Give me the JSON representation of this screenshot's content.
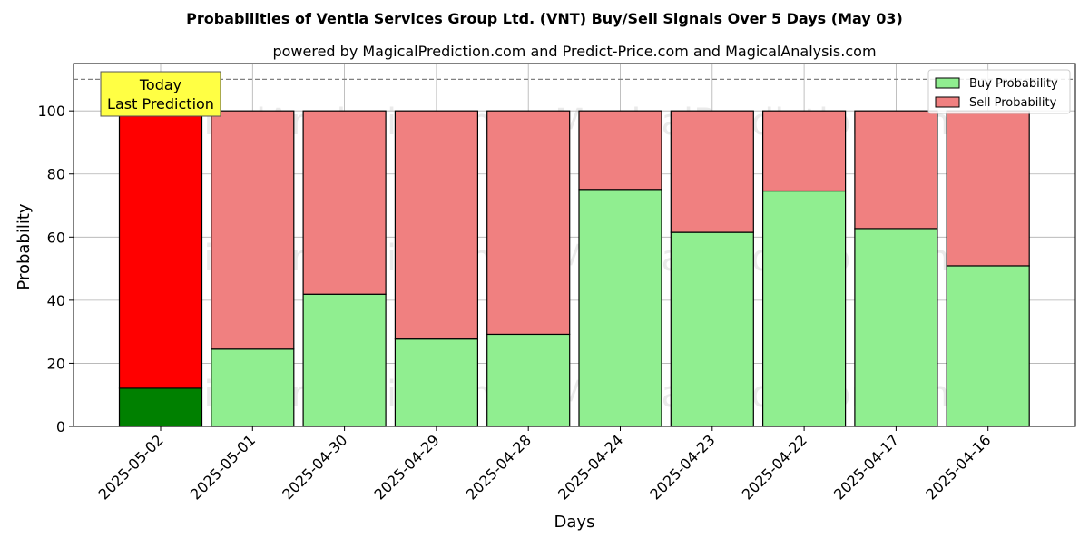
{
  "chart_data": {
    "type": "bar",
    "stacked": true,
    "title": "Probabilities of Ventia Services Group Ltd. (VNT) Buy/Sell Signals Over 5 Days (May 03)",
    "subtitle": "powered by MagicalPrediction.com and Predict-Price.com and MagicalAnalysis.com",
    "xlabel": "Days",
    "ylabel": "Probability",
    "ylim": [
      0,
      115
    ],
    "yticks": [
      0,
      20,
      40,
      60,
      80,
      100
    ],
    "reference_line": 110,
    "grid": true,
    "legend_position": "top-right",
    "categories": [
      "2025-05-02",
      "2025-05-01",
      "2025-04-30",
      "2025-04-29",
      "2025-04-28",
      "2025-04-24",
      "2025-04-23",
      "2025-04-22",
      "2025-04-17",
      "2025-04-16"
    ],
    "series": [
      {
        "name": "Buy Probability",
        "color": "#90ee90",
        "highlight_color": "#008000",
        "values": [
          12.1,
          24.5,
          41.9,
          27.7,
          29.2,
          75.1,
          61.5,
          74.6,
          62.7,
          50.9
        ]
      },
      {
        "name": "Sell Probability",
        "color": "#f08080",
        "highlight_color": "#ff0000",
        "values": [
          87.9,
          75.5,
          58.1,
          72.3,
          70.8,
          24.9,
          38.5,
          25.4,
          37.3,
          49.1
        ]
      }
    ],
    "highlight_index": 0,
    "annotation": {
      "lines": [
        "Today",
        "Last Prediction"
      ],
      "background": "#ffff44"
    },
    "watermarks": [
      "MagicalAnalysis.com",
      "MagicalPrediction.com"
    ]
  }
}
